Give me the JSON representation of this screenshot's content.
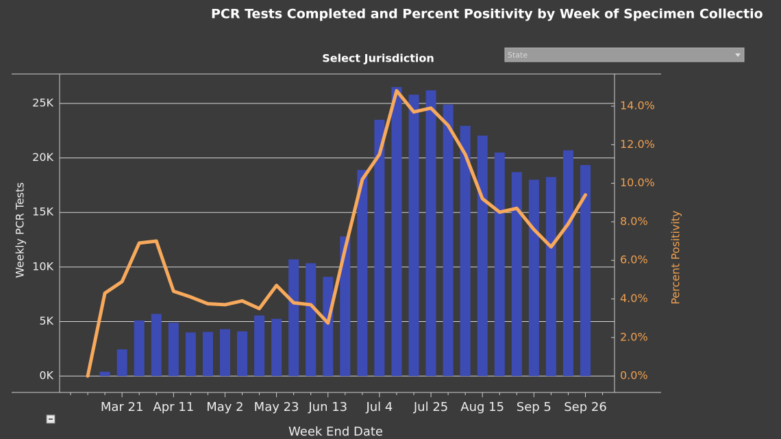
{
  "chart_data": {
    "type": "bar-line",
    "title": "PCR Tests Completed and Percent Positivity by Week of Specimen Collectio",
    "control_label": "Select Jurisdiction",
    "control_value": "State",
    "x_label": "Week End Date",
    "y_label": "Weekly PCR Tests",
    "y2_label": "Percent Positivity",
    "categories": [
      null,
      null,
      null,
      "Mar 21",
      null,
      null,
      "Apr 11",
      null,
      null,
      "May 2",
      null,
      null,
      "May 23",
      null,
      null,
      "Jun 13",
      null,
      null,
      "Jul 4",
      null,
      null,
      "Jul 25",
      null,
      null,
      "Aug 15",
      null,
      null,
      "Sep 5",
      null,
      null,
      "Sep 26",
      null
    ],
    "series": [
      {
        "name": "Weekly PCR Tests",
        "type": "bar",
        "color": "#3d4bb5",
        "values": [
          null,
          null,
          400,
          2450,
          5100,
          5700,
          4900,
          4000,
          4050,
          4300,
          4100,
          5550,
          5250,
          10700,
          10350,
          9100,
          12800,
          18900,
          23500,
          26500,
          25800,
          26200,
          24900,
          22950,
          22050,
          20500,
          18700,
          18000,
          18250,
          20700,
          19350,
          null
        ]
      },
      {
        "name": "Percent Positivity",
        "type": "line",
        "axis": "y2",
        "color": "#f7a95c",
        "values": [
          null,
          0,
          4.3,
          4.9,
          6.9,
          7.0,
          4.4,
          4.1,
          3.75,
          3.7,
          3.9,
          3.5,
          4.7,
          3.8,
          3.7,
          2.75,
          6.6,
          10.2,
          11.5,
          14.8,
          13.7,
          13.9,
          13.0,
          11.5,
          9.2,
          8.5,
          8.7,
          7.6,
          6.7,
          7.9,
          9.4,
          null
        ]
      }
    ],
    "ylim": [
      -1500,
      27700
    ],
    "yticks": [
      {
        "value": 0,
        "label": "0K"
      },
      {
        "value": 5000,
        "label": "5K"
      },
      {
        "value": 10000,
        "label": "10K"
      },
      {
        "value": 15000,
        "label": "15K"
      },
      {
        "value": 20000,
        "label": "20K"
      },
      {
        "value": 25000,
        "label": "25K"
      }
    ],
    "y2lim": [
      -0.85,
      15.67
    ],
    "y2ticks": [
      {
        "value": 0,
        "label": "0.0%"
      },
      {
        "value": 2,
        "label": "2.0%"
      },
      {
        "value": 4,
        "label": "4.0%"
      },
      {
        "value": 6,
        "label": "6.0%"
      },
      {
        "value": 8,
        "label": "8.0%"
      },
      {
        "value": 10,
        "label": "10.0%"
      },
      {
        "value": 12,
        "label": "12.0%"
      },
      {
        "value": 14,
        "label": "14.0%"
      }
    ],
    "grid": true
  }
}
